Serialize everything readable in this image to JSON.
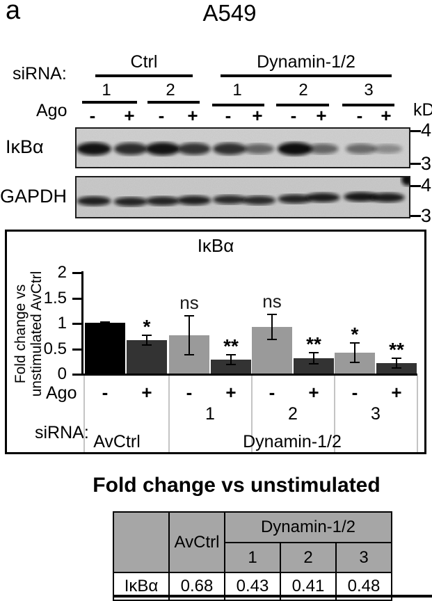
{
  "panel_label": "a",
  "cell_line_title": "A549",
  "blot_section": {
    "sirna_label": "siRNA:",
    "ago_label": "Ago",
    "kd_label": "kD",
    "groups": [
      {
        "label": "Ctrl",
        "lanes": [
          "1",
          "2"
        ]
      },
      {
        "label": "Dynamin-1/2",
        "lanes": [
          "1",
          "2",
          "3"
        ]
      }
    ],
    "ago_signs": [
      "-",
      "+",
      "-",
      "+",
      "-",
      "+",
      "-",
      "+",
      "-",
      "+"
    ],
    "blots": [
      {
        "label": "IκBα",
        "marker_labels": [
          "4",
          "3"
        ],
        "band_intensities": [
          0.97,
          0.84,
          0.97,
          0.8,
          0.82,
          0.55,
          1.0,
          0.55,
          0.52,
          0.35
        ]
      },
      {
        "label": "GAPDH",
        "marker_labels": [
          "4",
          "3"
        ],
        "band_intensities": [
          0.9,
          0.88,
          0.88,
          0.9,
          0.85,
          0.85,
          0.88,
          0.92,
          0.95,
          0.92
        ]
      }
    ]
  },
  "chart_data": {
    "type": "bar",
    "title": "IκBα",
    "ylabel": "Fold change vs unstimulated AvCtrl",
    "ylabel_lines": [
      "Fold change vs",
      "unstimulated AvCtrl"
    ],
    "ylim": [
      0,
      2
    ],
    "yticks": [
      "2",
      "1.5",
      "1",
      "0.5",
      "0"
    ],
    "x_axis_rows": {
      "ago_label": "Ago",
      "sirna_label": "siRNA:"
    },
    "bars": [
      {
        "group": "AvCtrl",
        "sirna": "",
        "ago": "-",
        "value": 1.0,
        "error": 0.03,
        "sig": "",
        "fill": "black"
      },
      {
        "group": "AvCtrl",
        "sirna": "",
        "ago": "+",
        "value": 0.66,
        "error": 0.11,
        "sig": "*",
        "fill": "dark"
      },
      {
        "group": "Dynamin-1/2",
        "sirna": "1",
        "ago": "-",
        "value": 0.75,
        "error": 0.4,
        "sig": "ns",
        "fill": "gray"
      },
      {
        "group": "Dynamin-1/2",
        "sirna": "1",
        "ago": "+",
        "value": 0.27,
        "error": 0.11,
        "sig": "**",
        "fill": "dark"
      },
      {
        "group": "Dynamin-1/2",
        "sirna": "2",
        "ago": "-",
        "value": 0.92,
        "error": 0.26,
        "sig": "ns",
        "fill": "gray"
      },
      {
        "group": "Dynamin-1/2",
        "sirna": "2",
        "ago": "+",
        "value": 0.3,
        "error": 0.12,
        "sig": "**",
        "fill": "dark"
      },
      {
        "group": "Dynamin-1/2",
        "sirna": "3",
        "ago": "-",
        "value": 0.41,
        "error": 0.2,
        "sig": "*",
        "fill": "gray"
      },
      {
        "group": "Dynamin-1/2",
        "sirna": "3",
        "ago": "+",
        "value": 0.2,
        "error": 0.11,
        "sig": "**",
        "fill": "dark"
      }
    ],
    "pair_numbers": [
      "",
      "1",
      "2",
      "3"
    ],
    "group_labels": [
      "AvCtrl",
      "Dynamin-1/2"
    ],
    "colors": {
      "black": "#000000",
      "dark": "#333333",
      "gray": "#9a9a9a"
    },
    "legend": "none",
    "grid": "off"
  },
  "summary_table": {
    "title": "Fold change vs unstimulated",
    "group_header": "Dynamin-1/2",
    "avctrl_header": "AvCtrl",
    "sub_headers": [
      "1",
      "2",
      "3"
    ],
    "rows": [
      {
        "label": "IκBα",
        "values": [
          "0.68",
          "0.43",
          "0.41",
          "0.48"
        ]
      }
    ],
    "header_bg": "#a6a6a6"
  }
}
